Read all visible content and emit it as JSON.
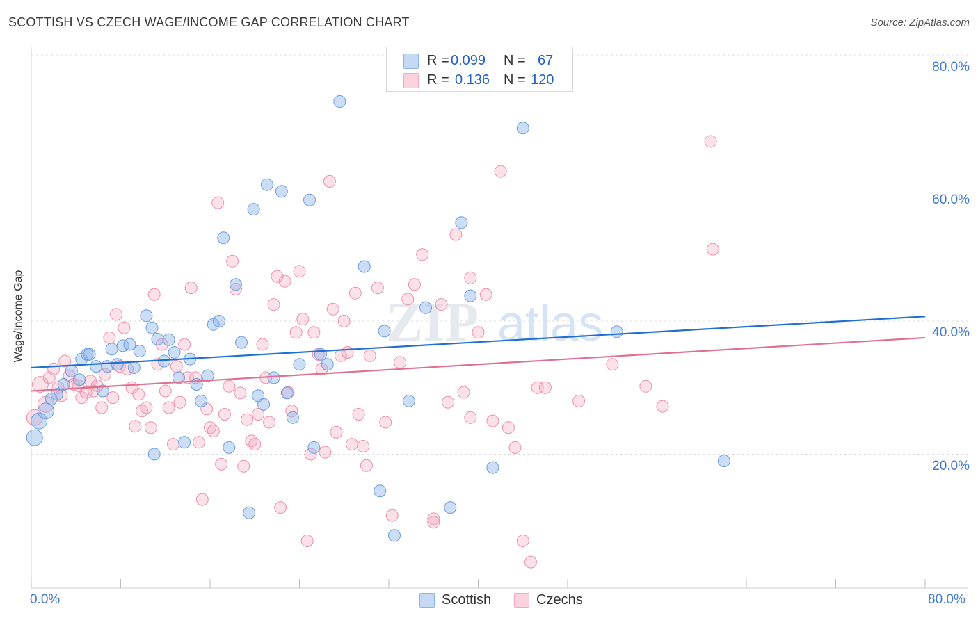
{
  "title": "SCOTTISH VS CZECH WAGE/INCOME GAP CORRELATION CHART",
  "source": "Source: ZipAtlas.com",
  "watermark": {
    "zip": "ZIP",
    "atlas": "atlas"
  },
  "legend": {
    "r_label": "R =",
    "n_label": "N =",
    "rows": [
      {
        "name": "Scottish",
        "r": "0.099",
        "n": "67",
        "color": "#8db4ea"
      },
      {
        "name": "Czechs",
        "r": "0.136",
        "n": "120",
        "color": "#f4a8be"
      }
    ]
  },
  "chart_data": {
    "type": "scatter",
    "title": "SCOTTISH VS CZECH WAGE/INCOME GAP CORRELATION CHART",
    "xlabel": "",
    "ylabel": "Wage/Income Gap",
    "xlim": [
      0,
      80
    ],
    "ylim": [
      0,
      80
    ],
    "x_tick_labels": [
      "0.0%",
      "80.0%"
    ],
    "y_tick_labels": [
      "20.0%",
      "40.0%",
      "60.0%",
      "80.0%"
    ],
    "y_ticks": [
      20,
      40,
      60,
      80
    ],
    "grid": "horizontal-dashed",
    "series": [
      {
        "name": "Scottish",
        "color": "#6a9de0",
        "trend": {
          "x": [
            0,
            80
          ],
          "y": [
            33.0,
            40.7
          ],
          "color": "#1f6fd1"
        },
        "points": [
          [
            0.3,
            22.5
          ],
          [
            0.7,
            25.0
          ],
          [
            1.3,
            26.5
          ],
          [
            1.8,
            28.3
          ],
          [
            2.3,
            29.0
          ],
          [
            2.9,
            30.5
          ],
          [
            3.6,
            32.5
          ],
          [
            4.3,
            31.2
          ],
          [
            4.5,
            34.3
          ],
          [
            5.0,
            35.0
          ],
          [
            5.2,
            35.0
          ],
          [
            5.8,
            33.2
          ],
          [
            6.4,
            29.5
          ],
          [
            6.8,
            33.2
          ],
          [
            7.2,
            35.8
          ],
          [
            7.7,
            33.5
          ],
          [
            8.2,
            36.3
          ],
          [
            8.8,
            36.5
          ],
          [
            9.2,
            33.0
          ],
          [
            9.7,
            35.5
          ],
          [
            10.3,
            40.8
          ],
          [
            10.8,
            39.0
          ],
          [
            11.3,
            37.3
          ],
          [
            11.9,
            34.0
          ],
          [
            12.3,
            37.2
          ],
          [
            12.8,
            35.3
          ],
          [
            13.2,
            31.5
          ],
          [
            13.7,
            21.8
          ],
          [
            14.2,
            34.3
          ],
          [
            14.8,
            30.5
          ],
          [
            15.2,
            28.0
          ],
          [
            15.8,
            31.8
          ],
          [
            16.3,
            39.5
          ],
          [
            16.8,
            40.0
          ],
          [
            17.2,
            52.5
          ],
          [
            17.7,
            21.0
          ],
          [
            18.3,
            45.5
          ],
          [
            18.8,
            36.8
          ],
          [
            19.9,
            56.8
          ],
          [
            20.3,
            28.8
          ],
          [
            20.8,
            27.5
          ],
          [
            21.1,
            60.5
          ],
          [
            21.7,
            31.5
          ],
          [
            22.4,
            59.5
          ],
          [
            22.9,
            29.2
          ],
          [
            23.4,
            25.5
          ],
          [
            24.0,
            33.5
          ],
          [
            24.9,
            58.2
          ],
          [
            25.3,
            21.0
          ],
          [
            25.9,
            35.0
          ],
          [
            26.5,
            33.5
          ],
          [
            27.6,
            73.0
          ],
          [
            29.8,
            48.2
          ],
          [
            31.6,
            38.5
          ],
          [
            31.2,
            14.5
          ],
          [
            32.5,
            7.8
          ],
          [
            35.3,
            42.0
          ],
          [
            33.8,
            28.0
          ],
          [
            37.5,
            12.0
          ],
          [
            38.5,
            54.8
          ],
          [
            39.3,
            43.8
          ],
          [
            41.3,
            18.0
          ],
          [
            44.0,
            69.0
          ],
          [
            11.0,
            20.0
          ],
          [
            19.5,
            11.2
          ],
          [
            52.4,
            38.4
          ],
          [
            62.0,
            19.0
          ]
        ]
      },
      {
        "name": "Czechs",
        "color": "#f08aa8",
        "trend": {
          "x": [
            0,
            80
          ],
          "y": [
            29.5,
            37.5
          ],
          "color": "#e0708f"
        },
        "points": [
          [
            0.3,
            25.5
          ],
          [
            0.8,
            30.5
          ],
          [
            1.3,
            27.5
          ],
          [
            1.6,
            31.5
          ],
          [
            2.0,
            32.8
          ],
          [
            2.4,
            30.0
          ],
          [
            2.7,
            28.8
          ],
          [
            3.0,
            34.0
          ],
          [
            3.4,
            31.8
          ],
          [
            3.8,
            30.5
          ],
          [
            4.2,
            30.3
          ],
          [
            4.5,
            28.5
          ],
          [
            4.9,
            29.3
          ],
          [
            5.3,
            31.0
          ],
          [
            5.6,
            29.5
          ],
          [
            5.9,
            30.3
          ],
          [
            6.3,
            27.0
          ],
          [
            6.6,
            32.0
          ],
          [
            7.0,
            37.5
          ],
          [
            7.3,
            28.5
          ],
          [
            7.6,
            41.0
          ],
          [
            7.9,
            33.2
          ],
          [
            8.3,
            39.0
          ],
          [
            8.6,
            32.8
          ],
          [
            9.0,
            30.0
          ],
          [
            9.3,
            24.2
          ],
          [
            9.6,
            29.0
          ],
          [
            9.9,
            26.5
          ],
          [
            10.3,
            27.0
          ],
          [
            10.7,
            24.0
          ],
          [
            11.0,
            44.0
          ],
          [
            11.3,
            33.5
          ],
          [
            11.7,
            36.5
          ],
          [
            12.0,
            29.5
          ],
          [
            12.3,
            27.0
          ],
          [
            12.7,
            21.5
          ],
          [
            13.0,
            33.2
          ],
          [
            13.3,
            27.8
          ],
          [
            13.7,
            36.5
          ],
          [
            14.0,
            31.5
          ],
          [
            14.3,
            45.0
          ],
          [
            14.7,
            31.5
          ],
          [
            15.0,
            21.8
          ],
          [
            15.3,
            13.2
          ],
          [
            15.7,
            26.8
          ],
          [
            16.0,
            24.0
          ],
          [
            16.3,
            23.5
          ],
          [
            16.7,
            57.8
          ],
          [
            17.0,
            18.5
          ],
          [
            17.3,
            26.0
          ],
          [
            17.7,
            30.2
          ],
          [
            18.0,
            49.0
          ],
          [
            18.3,
            44.8
          ],
          [
            18.7,
            29.2
          ],
          [
            19.0,
            18.2
          ],
          [
            19.3,
            25.2
          ],
          [
            19.7,
            22.0
          ],
          [
            20.0,
            21.5
          ],
          [
            20.3,
            26.0
          ],
          [
            20.7,
            36.5
          ],
          [
            21.0,
            31.5
          ],
          [
            21.3,
            24.8
          ],
          [
            21.7,
            42.5
          ],
          [
            22.0,
            46.7
          ],
          [
            22.3,
            12.0
          ],
          [
            22.7,
            46.0
          ],
          [
            23.0,
            29.3
          ],
          [
            23.3,
            26.5
          ],
          [
            23.7,
            38.3
          ],
          [
            24.0,
            47.5
          ],
          [
            24.3,
            40.3
          ],
          [
            24.7,
            7.0
          ],
          [
            25.0,
            20.0
          ],
          [
            25.3,
            38.3
          ],
          [
            25.7,
            35.0
          ],
          [
            26.0,
            32.8
          ],
          [
            26.3,
            20.3
          ],
          [
            26.7,
            61.0
          ],
          [
            27.0,
            41.8
          ],
          [
            27.3,
            23.3
          ],
          [
            27.7,
            34.8
          ],
          [
            28.0,
            40.0
          ],
          [
            28.3,
            35.3
          ],
          [
            28.7,
            21.5
          ],
          [
            29.0,
            44.2
          ],
          [
            29.3,
            26.0
          ],
          [
            29.7,
            21.2
          ],
          [
            30.0,
            18.3
          ],
          [
            30.3,
            34.8
          ],
          [
            31.0,
            45.0
          ],
          [
            31.7,
            24.8
          ],
          [
            32.3,
            10.8
          ],
          [
            33.0,
            33.8
          ],
          [
            33.7,
            43.3
          ],
          [
            34.3,
            45.5
          ],
          [
            35.0,
            50.0
          ],
          [
            36.0,
            10.3
          ],
          [
            36.7,
            42.5
          ],
          [
            37.3,
            27.8
          ],
          [
            38.0,
            53.0
          ],
          [
            38.7,
            29.3
          ],
          [
            39.3,
            46.5
          ],
          [
            40.0,
            38.3
          ],
          [
            40.7,
            44.0
          ],
          [
            41.3,
            25.0
          ],
          [
            42.0,
            62.5
          ],
          [
            42.7,
            24.0
          ],
          [
            43.3,
            21.0
          ],
          [
            44.0,
            7.0
          ],
          [
            44.7,
            3.8
          ],
          [
            45.3,
            30.0
          ],
          [
            52.0,
            33.5
          ],
          [
            55.0,
            30.2
          ],
          [
            56.5,
            27.2
          ],
          [
            60.8,
            67.0
          ],
          [
            61.0,
            50.8
          ],
          [
            36.0,
            9.8
          ],
          [
            39.3,
            25.5
          ],
          [
            49.0,
            28.0
          ],
          [
            46.0,
            30.0
          ]
        ]
      }
    ]
  }
}
